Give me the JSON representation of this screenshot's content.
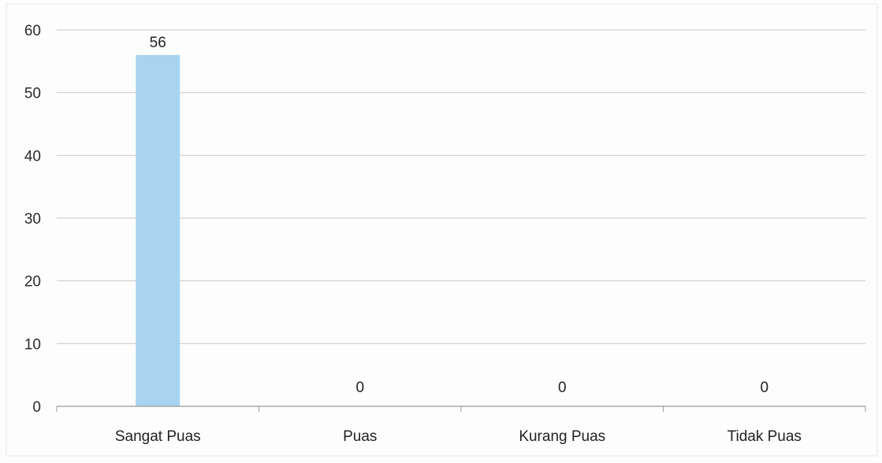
{
  "chart_data": {
    "type": "bar",
    "title": "",
    "xlabel": "",
    "ylabel": "",
    "categories": [
      "Sangat Puas",
      "Puas",
      "Kurang Puas",
      "Tidak Puas"
    ],
    "values": [
      56,
      0,
      0,
      0
    ],
    "data_labels": [
      "56",
      "0",
      "0",
      "0"
    ],
    "ylim": [
      0,
      60
    ],
    "yticks": [
      0,
      10,
      20,
      30,
      40,
      50,
      60
    ],
    "ytick_labels": [
      "0",
      "10",
      "20",
      "30",
      "40",
      "50",
      "60"
    ],
    "grid": true,
    "legend": "none",
    "bar_color": "#a9d3ef",
    "gridline_color": "#c9c9c9",
    "axis_color": "#9a9a9a"
  }
}
